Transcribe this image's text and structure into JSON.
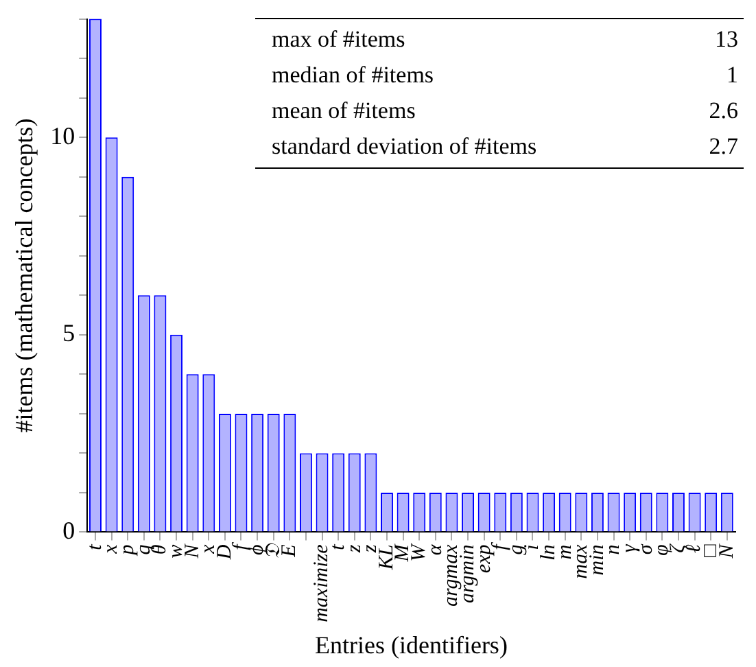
{
  "chart_data": {
    "type": "bar",
    "xlabel": "Entries (identifiers)",
    "ylabel": "#items (mathematical concepts)",
    "categories": [
      "t",
      "x",
      "p",
      "q",
      "θ",
      "w",
      "N",
      "x",
      "D",
      "f",
      "ϕ",
      "𝔇",
      "E",
      null,
      "maximize",
      "t",
      "z",
      "z",
      "KL",
      "M",
      "W",
      "α",
      "argmax",
      "argmin",
      "exp",
      "f",
      "g",
      "i",
      "ln",
      "m",
      "max",
      "min",
      "n",
      "γ",
      "σ",
      "φ",
      "ζ",
      "ℓ",
      "□",
      "N"
    ],
    "values": [
      13,
      10,
      9,
      6,
      6,
      5,
      4,
      4,
      3,
      3,
      3,
      3,
      3,
      2,
      2,
      2,
      2,
      2,
      1,
      1,
      1,
      1,
      1,
      1,
      1,
      1,
      1,
      1,
      1,
      1,
      1,
      1,
      1,
      1,
      1,
      1,
      1,
      1,
      1,
      1
    ],
    "color": "#b3b3ff",
    "ylim": [
      0,
      13
    ],
    "yticks": [
      0,
      {
        "value": 1,
        "label": null
      },
      {
        "value": 2,
        "label": null
      },
      {
        "value": 3,
        "label": null
      },
      {
        "value": 4,
        "label": null
      },
      5,
      {
        "value": 6,
        "label": null
      },
      {
        "value": 7,
        "label": null
      },
      {
        "value": 8,
        "label": null
      },
      {
        "value": 9,
        "label": null
      },
      10,
      {
        "value": 11,
        "label": null
      },
      {
        "value": 12,
        "label": null
      },
      {
        "value": 13,
        "label": null
      }
    ],
    "grid": false,
    "legend": false,
    "annotations": [
      "max of #items",
      "13",
      "median of #items",
      "1",
      "mean of #items",
      "2.6",
      "standard deviation of #items",
      "2.7"
    ]
  }
}
